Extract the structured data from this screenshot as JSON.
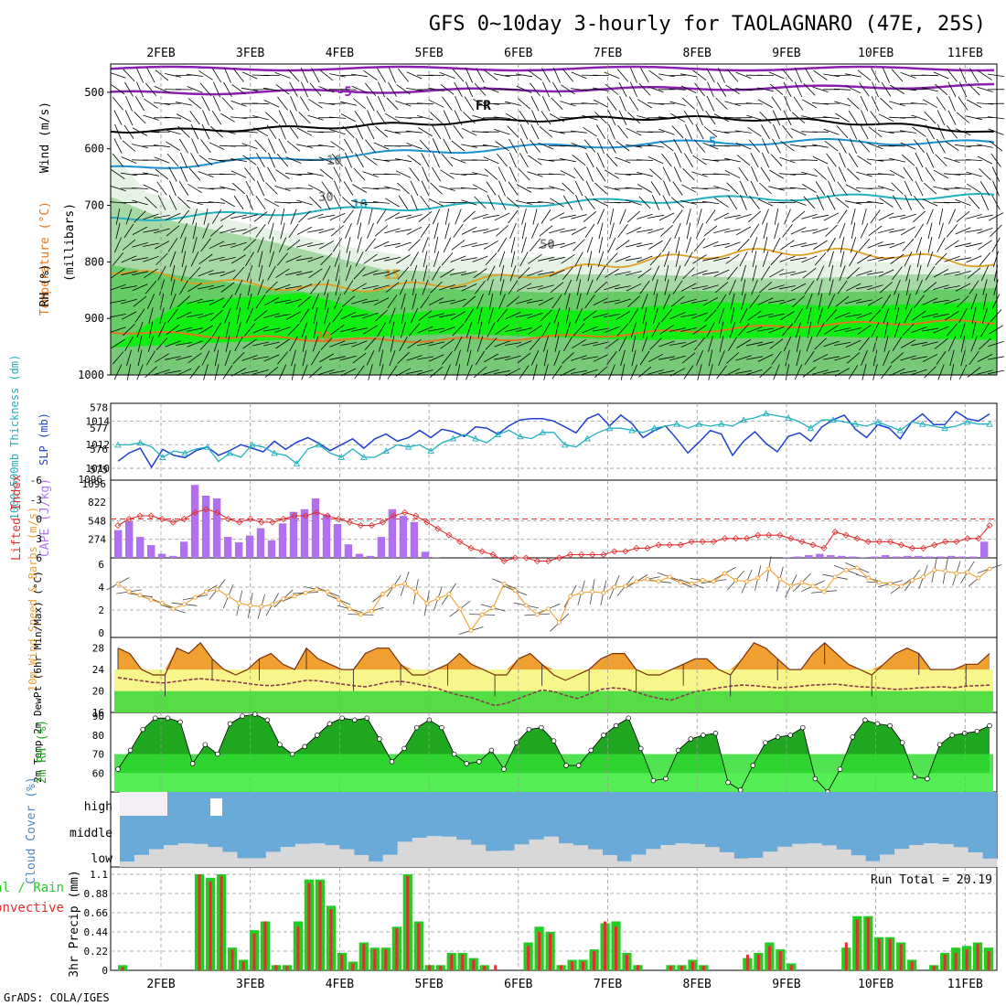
{
  "title": "GFS 0~10day 3-hourly for TAOLAGNARO (47E, 25S)",
  "footer": "GrADS: COLA/IGES",
  "date_labels": [
    "2FEB",
    "3FEB",
    "4FEB",
    "5FEB",
    "6FEB",
    "7FEB",
    "8FEB",
    "9FEB",
    "10FEB",
    "11FEB"
  ],
  "colors": {
    "rh": "#22cc22",
    "temp": "#e07820",
    "lifted": "#e03030",
    "cape": "#b070f0",
    "wind10": "#f0a030",
    "cloud": "#6aaad8",
    "slp": "#2040d0",
    "thick": "#20b0c0",
    "precip_total": "#22cc22",
    "precip_conv": "#e03030"
  },
  "chart_data": [
    {
      "type": "heatmap",
      "name": "upper-air",
      "ylabel_parts": [
        "Wind (m/s)",
        "Temperature (°C)",
        "RH (%)",
        "(millibars)"
      ],
      "y_ticks": [
        500,
        600,
        700,
        800,
        900,
        1000
      ],
      "contour_labels": [
        "-5",
        "FR",
        "5",
        "10",
        "15",
        "20",
        "10",
        "30",
        "50"
      ]
    },
    {
      "type": "line",
      "name": "slp-thickness",
      "ylabel_left": "1000~500mb Thickness (dm)",
      "ylabel_right": "SLP (mb)",
      "thick_ticks": [
        578,
        577,
        576,
        575
      ],
      "slp_ticks": [
        1014,
        1012,
        1010
      ],
      "slp_bottom_tick": "1096",
      "series": [
        {
          "name": "SLP",
          "values": [
            1010.6,
            1011.3,
            1011.7,
            1010.1,
            1011.6,
            1011.1,
            1010.9,
            1011.5,
            1011.8,
            1011.1,
            1011.5,
            1012.0,
            1011.7,
            1011.4,
            1012.3,
            1011.6,
            1012.2,
            1012.6,
            1012.1,
            1011.5,
            1012.0,
            1012.5,
            1011.7,
            1012.5,
            1012.9,
            1012.3,
            1012.6,
            1013.2,
            1012.6,
            1013.3,
            1013.1,
            1012.7,
            1013.5,
            1013.4,
            1012.9,
            1013.6,
            1014.1,
            1014.2,
            1014.2,
            1014.0,
            1013.5,
            1013.0,
            1014.2,
            1014.6,
            1013.6,
            1014.5,
            1013.8,
            1012.6,
            1013.2,
            1013.6,
            1012.5,
            1011.3,
            1012.2,
            1013.2,
            1012.9,
            1011.1,
            1012.3,
            1013.1,
            1012.1,
            1011.4,
            1012.7,
            1013.0,
            1012.3,
            1013.5,
            1014.1,
            1014.5,
            1013.3,
            1012.6,
            1013.7,
            1013.4,
            1012.5,
            1013.9,
            1014.6,
            1013.7,
            1013.7,
            1014.8,
            1014.2,
            1014.0,
            1014.6
          ]
        },
        {
          "name": "Thickness",
          "values": [
            576.2,
            576.2,
            576.3,
            576.1,
            575.6,
            575.9,
            575.8,
            576.0,
            576.1,
            575.4,
            575.8,
            575.6,
            576.2,
            576.1,
            575.8,
            575.7,
            575.3,
            576.0,
            576.2,
            575.8,
            575.6,
            576.0,
            575.6,
            575.6,
            575.9,
            576.2,
            576.1,
            576.2,
            575.9,
            576.3,
            576.5,
            576.7,
            576.5,
            576.3,
            576.7,
            576.9,
            576.6,
            576.5,
            576.8,
            576.8,
            576.2,
            576.1,
            576.5,
            576.8,
            577.0,
            577.0,
            576.9,
            576.8,
            577.0,
            577.1,
            577.2,
            577.0,
            577.2,
            577.1,
            577.2,
            577.1,
            577.4,
            577.5,
            577.7,
            577.6,
            577.5,
            577.3,
            577.0,
            577.4,
            577.4,
            577.3,
            577.2,
            577.1,
            577.3,
            577.1,
            576.9,
            577.3,
            577.2,
            577.1,
            577.0,
            577.1,
            577.3,
            577.2,
            577.2
          ]
        }
      ]
    },
    {
      "type": "bar",
      "name": "lifted-cape",
      "ylabel_left": "Lifted Index",
      "ylabel_right": "CAPE (J/kg)",
      "li_ticks": [
        "-6",
        "-3",
        "0",
        "3",
        "6"
      ],
      "cape_ticks": [
        "1096",
        "822",
        "548",
        "274"
      ],
      "series": [
        {
          "name": "CAPE",
          "values": [
            410,
            540,
            310,
            190,
            60,
            30,
            240,
            1080,
            920,
            880,
            310,
            230,
            330,
            440,
            260,
            510,
            680,
            720,
            880,
            640,
            500,
            200,
            60,
            30,
            310,
            720,
            620,
            530,
            90,
            10,
            0,
            0,
            0,
            10,
            0,
            0,
            0,
            0,
            0,
            0,
            0,
            0,
            0,
            0,
            0,
            0,
            0,
            0,
            0,
            0,
            0,
            0,
            0,
            0,
            0,
            0,
            0,
            0,
            0,
            0,
            0,
            10,
            20,
            40,
            60,
            40,
            30,
            20,
            10,
            20,
            40,
            20,
            30,
            30,
            20,
            20,
            30,
            20,
            20,
            240
          ]
        },
        {
          "name": "Lifted Index",
          "values": [
            1.0,
            0.0,
            -0.5,
            -0.5,
            0.0,
            0.5,
            0.0,
            -1.0,
            -1.5,
            -1.0,
            0.0,
            0.5,
            0.0,
            0.5,
            0.5,
            0.0,
            -0.5,
            -0.5,
            -1.0,
            -0.5,
            0.0,
            0.5,
            1.0,
            1.0,
            0.5,
            -0.5,
            -1.0,
            -0.5,
            0.5,
            1.5,
            2.5,
            3.5,
            4.5,
            5.0,
            5.5,
            6.5,
            6.0,
            6.0,
            6.5,
            6.5,
            6.0,
            5.5,
            5.5,
            5.5,
            5.5,
            5.0,
            5.0,
            4.5,
            4.5,
            4.0,
            4.0,
            4.0,
            3.5,
            3.5,
            3.5,
            3.0,
            3.0,
            3.0,
            2.5,
            2.5,
            2.5,
            3.0,
            3.5,
            4.0,
            4.5,
            2.0,
            2.5,
            3.0,
            3.5,
            3.5,
            3.5,
            4.0,
            4.5,
            4.5,
            4.0,
            3.5,
            3.5,
            3.0,
            3.0,
            1.0
          ]
        }
      ]
    },
    {
      "type": "line",
      "name": "wind10",
      "ylabel": "10m Wind Speed & Barbs (m/s)",
      "y_ticks": [
        0,
        2,
        4,
        6
      ],
      "series": [
        {
          "name": "Wind speed",
          "values": [
            4.3,
            3.6,
            3.3,
            2.9,
            2.6,
            2.1,
            2.5,
            3.1,
            3.6,
            3.8,
            3.2,
            2.6,
            2.4,
            2.3,
            2.5,
            3.0,
            3.2,
            3.5,
            3.8,
            3.6,
            2.9,
            2.1,
            1.6,
            1.9,
            3.4,
            4.1,
            4.3,
            3.6,
            2.6,
            3.0,
            3.4,
            2.1,
            0.2,
            1.6,
            2.2,
            4.3,
            3.7,
            2.4,
            1.6,
            2.1,
            0.9,
            3.2,
            3.5,
            3.6,
            3.5,
            4.0,
            4.1,
            4.5,
            4.7,
            4.5,
            4.9,
            4.4,
            4.3,
            4.6,
            4.5,
            5.2,
            4.6,
            4.5,
            4.8,
            5.6,
            4.7,
            4.1,
            4.4,
            4.1,
            3.6,
            4.9,
            5.5,
            5.7,
            4.8,
            4.4,
            4.3,
            4.1,
            4.6,
            4.9,
            5.5,
            5.4,
            5.2,
            5.3,
            4.8,
            5.6
          ]
        }
      ]
    },
    {
      "type": "area",
      "name": "temp-dewpt",
      "ylabel": "2m Temp 2m DewPt (6hr Min/Max) (°C)",
      "y_ticks": [
        16,
        20,
        24,
        28
      ],
      "series": [
        {
          "name": "Temp",
          "values": [
            28,
            27,
            24,
            23,
            23,
            28,
            27,
            29,
            26,
            24,
            23,
            24,
            26,
            27,
            25,
            24,
            28,
            26,
            25,
            24,
            24,
            27,
            28,
            28,
            25,
            23,
            23,
            24,
            25,
            27,
            25,
            24,
            23,
            23,
            26,
            27,
            25,
            23,
            22,
            23,
            24,
            26,
            27,
            27,
            24,
            23,
            23,
            24,
            25,
            26,
            26,
            24,
            23,
            26,
            29,
            28,
            26,
            24,
            24,
            27,
            29,
            27,
            25,
            24,
            23,
            25,
            27,
            28,
            27,
            24,
            24,
            24,
            25,
            25,
            27
          ]
        },
        {
          "name": "DewPt",
          "values": [
            22.5,
            22.2,
            21.9,
            21.6,
            21.5,
            21.8,
            22.1,
            22.3,
            22.1,
            21.9,
            21.7,
            21.4,
            21.1,
            21.0,
            21.2,
            21.6,
            22.0,
            21.9,
            21.6,
            21.3,
            21.0,
            20.8,
            21.2,
            21.7,
            21.8,
            21.5,
            21.0,
            20.6,
            19.8,
            19.2,
            18.8,
            18.0,
            17.3,
            17.7,
            18.6,
            19.4,
            20.2,
            19.9,
            19.2,
            18.6,
            19.4,
            20.3,
            20.6,
            20.4,
            19.8,
            19.1,
            18.6,
            18.3,
            19.1,
            19.9,
            20.2,
            20.6,
            20.9,
            21.1,
            21.0,
            20.8,
            20.6,
            20.7,
            20.9,
            21.1,
            21.2,
            21.3,
            21.0,
            20.8,
            20.7,
            20.5,
            20.3,
            20.4,
            20.6,
            20.7,
            20.8,
            20.6,
            20.9,
            21.0,
            21.1
          ]
        }
      ]
    },
    {
      "type": "area",
      "name": "rh2m",
      "ylabel": "2m RH (%)",
      "y_ticks": [
        60,
        70,
        80,
        90
      ],
      "series": [
        {
          "name": "RH",
          "values": [
            62,
            72,
            83,
            89,
            89,
            87,
            65,
            75,
            70,
            86,
            90,
            91,
            88,
            75,
            70,
            74,
            80,
            86,
            89,
            88,
            89,
            78,
            66,
            73,
            84,
            88,
            84,
            70,
            65,
            66,
            72,
            62,
            76,
            83,
            84,
            77,
            64,
            64,
            72,
            80,
            85,
            89,
            73,
            56,
            57,
            72,
            78,
            80,
            81,
            55,
            51,
            64,
            76,
            79,
            80,
            84,
            57,
            50,
            62,
            79,
            88,
            86,
            85,
            76,
            58,
            57,
            75,
            80,
            81,
            82,
            85
          ]
        }
      ]
    },
    {
      "type": "area",
      "name": "cloud-cover",
      "ylabel": "Cloud Cover (%)",
      "categories": [
        "high",
        "middle",
        "low"
      ]
    },
    {
      "type": "bar",
      "name": "precip",
      "ylabel": "3hr Precip (mm)",
      "legend": [
        "Total / Rain",
        "Convective"
      ],
      "annotation": "Run Total = 20.19",
      "y_ticks": [
        "0",
        "0.22",
        "0.44",
        "0.66",
        "0.88",
        "1.1"
      ],
      "series": [
        {
          "name": "Total",
          "values": [
            0.06,
            0,
            0,
            0,
            0,
            0,
            0,
            1.1,
            1.06,
            1.1,
            0.26,
            0.12,
            0.46,
            0.56,
            0.06,
            0.06,
            0.56,
            1.04,
            1.04,
            0.74,
            0.2,
            0.1,
            0.32,
            0.26,
            0.26,
            0.5,
            1.1,
            0.56,
            0.06,
            0.06,
            0.2,
            0.2,
            0.14,
            0.06,
            0,
            0,
            0,
            0.32,
            0.5,
            0.44,
            0.06,
            0.12,
            0.12,
            0.24,
            0.54,
            0.56,
            0.2,
            0.06,
            0,
            0,
            0.06,
            0.06,
            0.12,
            0.06,
            0,
            0,
            0,
            0.14,
            0.2,
            0.32,
            0.24,
            0.08,
            0,
            0,
            0,
            0,
            0.26,
            0.62,
            0.62,
            0.38,
            0.38,
            0.32,
            0.12,
            0,
            0.06,
            0.2,
            0.26,
            0.28,
            0.32,
            0.26
          ]
        },
        {
          "name": "Convective",
          "values": [
            0.04,
            0,
            0,
            0,
            0,
            0,
            0,
            1.1,
            1.02,
            1.08,
            0.24,
            0.1,
            0.42,
            0.56,
            0.06,
            0.05,
            0.5,
            1.0,
            1.02,
            0.7,
            0.18,
            0.08,
            0.3,
            0.24,
            0.24,
            0.48,
            1.08,
            0.54,
            0.06,
            0.05,
            0.18,
            0.18,
            0.12,
            0.05,
            0.06,
            0,
            0,
            0.28,
            0.44,
            0.42,
            0.06,
            0.1,
            0.1,
            0.22,
            0.56,
            0.5,
            0.18,
            0.06,
            0,
            0,
            0.05,
            0.05,
            0.1,
            0.05,
            0,
            0,
            0,
            0.18,
            0.18,
            0.28,
            0.22,
            0.06,
            0,
            0,
            0,
            0,
            0.32,
            0.58,
            0.6,
            0.36,
            0.36,
            0.3,
            0.1,
            0,
            0.05,
            0.18,
            0.2,
            0.24,
            0.3,
            0.22
          ]
        }
      ]
    }
  ]
}
